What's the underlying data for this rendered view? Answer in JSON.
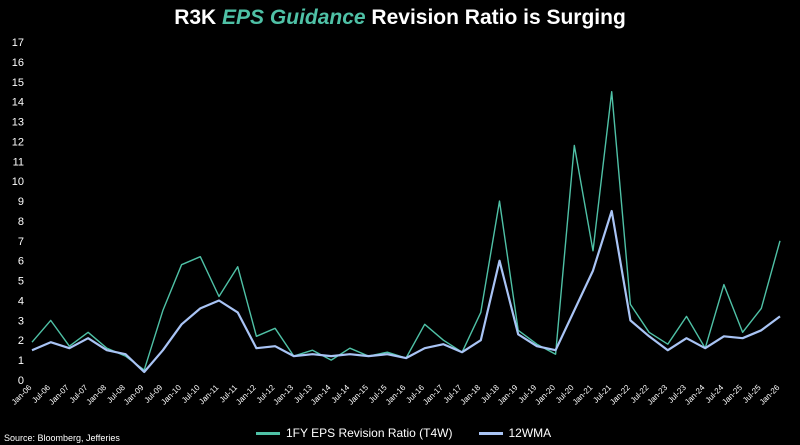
{
  "title": {
    "prefix": "R3K ",
    "accent": "EPS Guidance",
    "suffix": " Revision Ratio is Surging"
  },
  "source": "Source: Bloomberg, Jefferies",
  "colors": {
    "background": "#000000",
    "ratio": "#4fc1a6",
    "wma": "#a9c4f5",
    "text": "#ffffff"
  },
  "chart_data": {
    "type": "line",
    "title": "R3K EPS Guidance Revision Ratio is Surging",
    "ylim": [
      0,
      17
    ],
    "yticks": [
      0,
      1,
      2,
      3,
      4,
      5,
      6,
      7,
      8,
      9,
      10,
      11,
      12,
      13,
      14,
      15,
      16,
      17
    ],
    "grid": false,
    "legend_position": "bottom",
    "x": [
      "Jan-06",
      "Jul-06",
      "Jan-07",
      "Jul-07",
      "Jan-08",
      "Jul-08",
      "Jan-09",
      "Jul-09",
      "Jan-10",
      "Jul-10",
      "Jan-11",
      "Jul-11",
      "Jan-12",
      "Jul-12",
      "Jan-13",
      "Jul-13",
      "Jan-14",
      "Jul-14",
      "Jan-15",
      "Jul-15",
      "Jan-16",
      "Jul-16",
      "Jan-17",
      "Jul-17",
      "Jan-18",
      "Jul-18",
      "Jan-19",
      "Jul-19",
      "Jan-20",
      "Jul-20",
      "Jan-21",
      "Jul-21",
      "Jan-22",
      "Jul-22",
      "Jan-23",
      "Jul-23",
      "Jan-24",
      "Jul-24",
      "Jan-25",
      "Jul-25",
      "Jan-26"
    ],
    "x_tick_labels": [
      "Jan-06",
      "Jul-06",
      "Jan-07",
      "Jul-07",
      "Jan-08",
      "Jul-08",
      "Jan-09",
      "Jul-09",
      "Jan-10",
      "Jul-10",
      "Jan-11",
      "Jul-11",
      "Jan-12",
      "Jul-12",
      "Jan-13",
      "Jul-13",
      "Jan-14",
      "Jul-14",
      "Jan-15",
      "Jul-15",
      "Jan-16",
      "Jul-16",
      "Jan-17",
      "Jul-17",
      "Jan-18",
      "Jul-18",
      "Jan-19",
      "Jul-19",
      "Jan-20",
      "Jul-20",
      "Jan-21",
      "Jul-21",
      "Jan-22",
      "Jul-22",
      "Jan-23",
      "Jul-23",
      "Jan-24",
      "Jul-24",
      "Jan-25",
      "Jul-25",
      "Jan-26"
    ],
    "series": [
      {
        "name": "1FY EPS Revision Ratio (T4W)",
        "color": "#4fc1a6",
        "values": [
          1.9,
          3.0,
          1.7,
          2.4,
          1.6,
          1.2,
          0.5,
          3.5,
          5.8,
          6.2,
          4.2,
          5.7,
          2.2,
          2.6,
          1.2,
          1.5,
          1.0,
          1.6,
          1.2,
          1.4,
          1.1,
          2.8,
          2.0,
          1.4,
          3.4,
          9.0,
          2.5,
          1.8,
          1.3,
          11.8,
          6.5,
          14.5,
          3.8,
          2.4,
          1.8,
          3.2,
          1.6,
          4.8,
          2.4,
          3.6,
          7.0
        ]
      },
      {
        "name": "12WMA",
        "color": "#a9c4f5",
        "values": [
          1.5,
          1.9,
          1.6,
          2.1,
          1.5,
          1.3,
          0.4,
          1.5,
          2.8,
          3.6,
          4.0,
          3.4,
          1.6,
          1.7,
          1.2,
          1.3,
          1.2,
          1.3,
          1.2,
          1.3,
          1.1,
          1.6,
          1.8,
          1.4,
          2.0,
          6.0,
          2.3,
          1.7,
          1.5,
          3.5,
          5.5,
          8.5,
          3.0,
          2.2,
          1.5,
          2.1,
          1.6,
          2.2,
          2.1,
          2.5,
          3.2
        ]
      }
    ]
  },
  "legend": {
    "series1": "1FY EPS Revision Ratio (T4W)",
    "series2": "12WMA"
  }
}
